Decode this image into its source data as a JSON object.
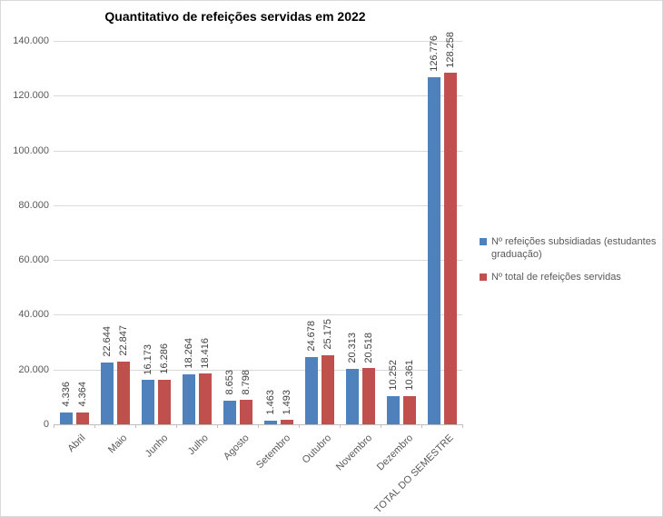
{
  "chart_data": {
    "type": "bar",
    "title": "Quantitativo de refeições servidas em 2022",
    "categories": [
      "Abril",
      "Maio",
      "Junho",
      "Julho",
      "Agosto",
      "Setembro",
      "Outubro",
      "Novembro",
      "Dezembro",
      "TOTAL DO SEMESTRE"
    ],
    "series": [
      {
        "name": "Nº refeições subsidiadas (estudantes graduação)",
        "color": "#4F81BD",
        "values": [
          4336,
          22644,
          16173,
          18264,
          8653,
          1463,
          24678,
          20313,
          10252,
          126776
        ],
        "labels": [
          "4.336",
          "22.644",
          "16.173",
          "18.264",
          "8.653",
          "1.463",
          "24.678",
          "20.313",
          "10.252",
          "126.776"
        ]
      },
      {
        "name": "Nº total de refeições servidas",
        "color": "#C0504D",
        "values": [
          4364,
          22847,
          16286,
          18416,
          8798,
          1493,
          25175,
          20518,
          10361,
          128258
        ],
        "labels": [
          "4.364",
          "22.847",
          "16.286",
          "18.416",
          "8.798",
          "1.493",
          "25.175",
          "20.518",
          "10.361",
          "128.258"
        ]
      }
    ],
    "ylim": [
      0,
      140000
    ],
    "ytick_step": 20000,
    "ytick_labels": [
      "0",
      "20.000",
      "40.000",
      "60.000",
      "80.000",
      "100.000",
      "120.000",
      "140.000"
    ],
    "grid": true,
    "legend_position": "right"
  },
  "colors": {
    "background": "#FFFFFF",
    "border": "#D9D9D9",
    "gridline": "#D9D9D9",
    "axis_line": "#BFBFBF",
    "axis_text": "#595959",
    "data_label_text": "#404040",
    "title_text": "#000000"
  }
}
